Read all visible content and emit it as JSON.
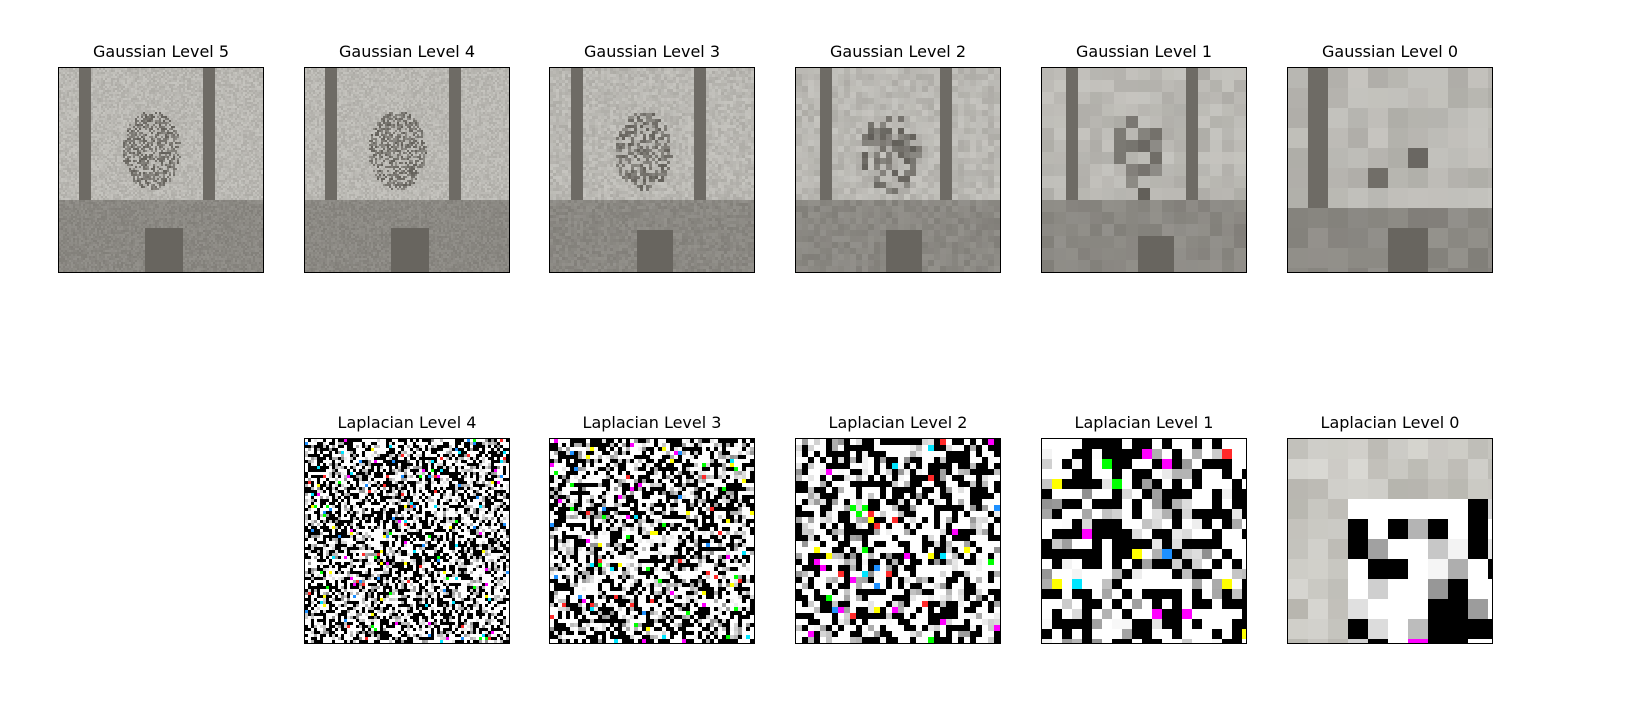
{
  "figure": {
    "gaussian_titles": [
      "Gaussian Level 5",
      "Gaussian Level 4",
      "Gaussian Level 3",
      "Gaussian Level 2",
      "Gaussian Level 1",
      "Gaussian Level 0"
    ],
    "laplacian_titles": [
      "Laplacian Level 4",
      "Laplacian Level 3",
      "Laplacian Level 2",
      "Laplacian Level 1",
      "Laplacian Level 0"
    ]
  },
  "colors": {
    "gaussian_light": "#d9d8d3",
    "gaussian_mid": "#9c9a92",
    "gaussian_dark": "#5b5852",
    "laplacian_black": "#000000",
    "laplacian_white": "#ffffff",
    "laplacian_gray": "#8f8f8f"
  }
}
